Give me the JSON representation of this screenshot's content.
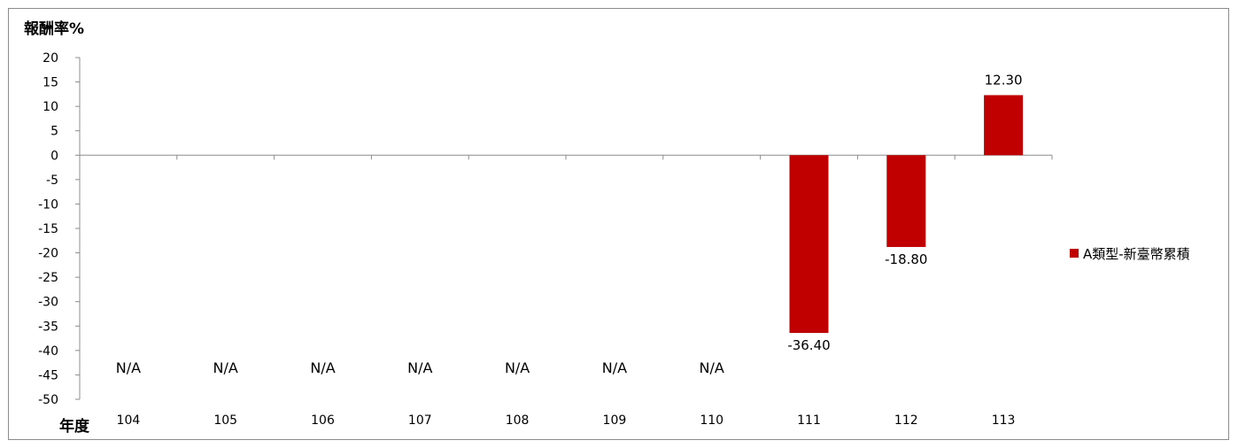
{
  "chart_data": {
    "type": "bar",
    "ylabel": "報酬率%",
    "xlabel": "年度",
    "categories": [
      "104",
      "105",
      "106",
      "107",
      "108",
      "109",
      "110",
      "111",
      "112",
      "113"
    ],
    "series": [
      {
        "name": "A類型-新臺幣累積",
        "values": [
          null,
          null,
          null,
          null,
          null,
          null,
          null,
          -36.4,
          -18.8,
          12.3
        ],
        "labels": [
          "N/A",
          "N/A",
          "N/A",
          "N/A",
          "N/A",
          "N/A",
          "N/A",
          "-36.40",
          "-18.80",
          "12.30"
        ],
        "color": "#c00000"
      }
    ],
    "ylim": [
      -50,
      20
    ],
    "ytick_step": 5,
    "yticks": [
      "20",
      "15",
      "10",
      "5",
      "0",
      "-5",
      "-10",
      "-15",
      "-20",
      "-25",
      "-30",
      "-35",
      "-40",
      "-45",
      "-50"
    ],
    "grid": false,
    "legend_position": "right"
  }
}
